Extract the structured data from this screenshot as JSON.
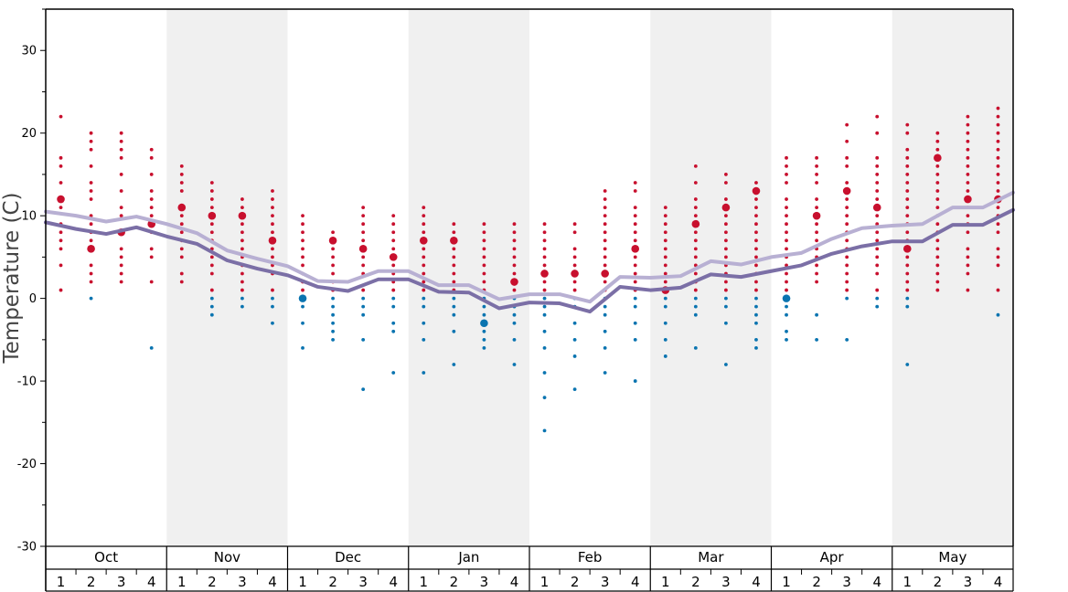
{
  "chart_data": {
    "type": "scatter",
    "ylabel": "Temperature (C)",
    "ylim": [
      -30,
      35
    ],
    "yticks": [
      -30,
      -20,
      -10,
      0,
      10,
      20,
      30
    ],
    "months": [
      "Oct",
      "Nov",
      "Dec",
      "Jan",
      "Feb",
      "Mar",
      "Apr",
      "May"
    ],
    "weeks": [
      "1",
      "2",
      "3",
      "4"
    ],
    "shaded_months": [
      "Nov",
      "Jan",
      "Mar",
      "May"
    ],
    "colors": {
      "warm_dots": "#c8102e",
      "cold_dots": "#0a74b0",
      "dark_line": "#7b6fa6",
      "light_line": "#b8b0d3",
      "shade": "#f0f0f0"
    },
    "series": [
      {
        "values": [
          9.2,
          8.4,
          7.8,
          8.6,
          7.5,
          6.6,
          4.6,
          3.6,
          2.8,
          1.4,
          0.9,
          2.3,
          2.3,
          0.8,
          0.7,
          -1.2,
          -0.5,
          -0.6,
          -1.6,
          1.4,
          1.0,
          1.3,
          2.9,
          2.6,
          3.3,
          4.0,
          5.4,
          6.3,
          6.9,
          6.9,
          8.9,
          8.9,
          10.7
        ]
      },
      {
        "values": [
          10.5,
          10.0,
          9.3,
          9.9,
          9.0,
          7.9,
          5.8,
          4.8,
          3.9,
          2.1,
          2.0,
          3.3,
          3.3,
          1.6,
          1.6,
          -0.1,
          0.5,
          0.5,
          -0.4,
          2.6,
          2.5,
          2.7,
          4.5,
          4.1,
          5.0,
          5.5,
          7.2,
          8.5,
          8.8,
          9.0,
          11.0,
          11.0,
          12.8
        ]
      }
    ],
    "dots": [
      [
        22,
        17,
        16,
        14,
        12,
        11,
        9,
        8,
        7,
        6,
        4,
        1
      ],
      [
        20,
        19,
        18,
        16,
        14,
        13,
        12,
        10,
        9,
        8,
        7,
        6,
        4,
        3,
        2,
        0
      ],
      [
        20,
        19,
        18,
        17,
        15,
        13,
        11,
        10,
        8,
        6,
        5,
        4,
        3,
        2
      ],
      [
        18,
        17,
        15,
        13,
        12,
        11,
        10,
        9,
        8,
        6,
        5,
        2,
        -6
      ],
      [
        16,
        15,
        14,
        13,
        11,
        10,
        9,
        8,
        7,
        6,
        5,
        3,
        2
      ],
      [
        14,
        13,
        12,
        11,
        10,
        9,
        8,
        7,
        6,
        5,
        4,
        3,
        1,
        0,
        -1,
        -2
      ],
      [
        12,
        11,
        10,
        9,
        8,
        7,
        6,
        5,
        4,
        3,
        2,
        1,
        0,
        -1
      ],
      [
        13,
        12,
        11,
        10,
        9,
        8,
        7,
        6,
        5,
        4,
        3,
        1,
        0,
        -1,
        -3
      ],
      [
        10,
        9,
        8,
        7,
        6,
        5,
        4,
        3,
        2,
        1,
        0,
        -1,
        -3,
        -6
      ],
      [
        8,
        7,
        6,
        5,
        4,
        3,
        2,
        1,
        0,
        -1,
        -2,
        -3,
        -4,
        -5
      ],
      [
        11,
        10,
        9,
        8,
        7,
        6,
        5,
        4,
        3,
        1,
        0,
        -1,
        -2,
        -5,
        -11
      ],
      [
        10,
        9,
        8,
        7,
        6,
        5,
        4,
        3,
        2,
        1,
        0,
        -1,
        -3,
        -4,
        -9
      ],
      [
        11,
        10,
        9,
        8,
        7,
        6,
        5,
        4,
        3,
        2,
        1,
        0,
        -1,
        -3,
        -5,
        -9
      ],
      [
        9,
        8,
        7,
        6,
        5,
        4,
        3,
        2,
        1,
        0,
        -1,
        -2,
        -4,
        -8
      ],
      [
        9,
        8,
        7,
        6,
        5,
        4,
        3,
        2,
        1,
        0,
        -1,
        -2,
        -3,
        -4,
        -5,
        -6
      ],
      [
        9,
        8,
        7,
        6,
        5,
        4,
        3,
        2,
        1,
        0,
        -1,
        -2,
        -3,
        -5,
        -8
      ],
      [
        9,
        8,
        7,
        6,
        5,
        4,
        3,
        2,
        1,
        0,
        -1,
        -2,
        -4,
        -6,
        -9,
        -12,
        -16
      ],
      [
        9,
        8,
        6,
        5,
        4,
        3,
        2,
        1,
        0,
        -1,
        -3,
        -5,
        -7,
        -11
      ],
      [
        13,
        12,
        11,
        10,
        9,
        8,
        7,
        6,
        5,
        4,
        3,
        2,
        1,
        0,
        -1,
        -2,
        -4,
        -6,
        -9
      ],
      [
        14,
        13,
        11,
        10,
        9,
        8,
        7,
        6,
        5,
        4,
        3,
        2,
        1,
        0,
        -1,
        -3,
        -5,
        -10
      ],
      [
        11,
        10,
        9,
        8,
        7,
        6,
        5,
        4,
        3,
        2,
        1,
        0,
        -1,
        -3,
        -5,
        -7
      ],
      [
        16,
        14,
        12,
        11,
        10,
        9,
        8,
        7,
        6,
        5,
        4,
        3,
        2,
        1,
        0,
        -1,
        -2,
        -6
      ],
      [
        15,
        14,
        12,
        11,
        10,
        9,
        8,
        7,
        6,
        5,
        4,
        3,
        2,
        1,
        0,
        -1,
        -3,
        -8
      ],
      [
        14,
        13,
        12,
        11,
        10,
        9,
        8,
        7,
        6,
        5,
        4,
        3,
        2,
        1,
        0,
        -1,
        -2,
        -3,
        -5,
        -6
      ],
      [
        17,
        16,
        15,
        14,
        12,
        11,
        10,
        9,
        8,
        7,
        6,
        5,
        4,
        3,
        2,
        1,
        0,
        -1,
        -2,
        -4,
        -5
      ],
      [
        17,
        16,
        15,
        14,
        12,
        11,
        10,
        9,
        8,
        7,
        6,
        5,
        4,
        3,
        2,
        -2,
        -5
      ],
      [
        21,
        19,
        17,
        16,
        14,
        13,
        12,
        11,
        10,
        9,
        8,
        7,
        6,
        5,
        4,
        3,
        2,
        1,
        0,
        -5
      ],
      [
        22,
        20,
        17,
        16,
        15,
        14,
        13,
        12,
        11,
        10,
        9,
        8,
        7,
        6,
        5,
        4,
        3,
        1,
        0,
        -1
      ],
      [
        21,
        20,
        18,
        17,
        16,
        15,
        14,
        13,
        12,
        11,
        10,
        9,
        8,
        7,
        6,
        5,
        4,
        3,
        2,
        1,
        0,
        -1,
        -8
      ],
      [
        20,
        19,
        18,
        17,
        16,
        15,
        14,
        13,
        12,
        11,
        10,
        9,
        8,
        7,
        6,
        5,
        4,
        3,
        2,
        1
      ],
      [
        22,
        21,
        20,
        19,
        18,
        17,
        16,
        15,
        14,
        13,
        12,
        11,
        10,
        9,
        8,
        6,
        5,
        4,
        3,
        1
      ],
      [
        23,
        22,
        21,
        20,
        19,
        18,
        17,
        16,
        15,
        14,
        13,
        12,
        11,
        10,
        9,
        8,
        6,
        5,
        4,
        1,
        -2
      ]
    ],
    "big_dots": [
      [
        12
      ],
      [
        6
      ],
      [
        8
      ],
      [
        9
      ],
      [
        11
      ],
      [
        10
      ],
      [
        10
      ],
      [
        7
      ],
      [
        0
      ],
      [
        7
      ],
      [
        6
      ],
      [
        5
      ],
      [
        7
      ],
      [
        7
      ],
      [
        -3
      ],
      [
        2
      ],
      [
        3
      ],
      [
        3
      ],
      [
        3
      ],
      [
        6
      ],
      [
        1
      ],
      [
        9
      ],
      [
        11
      ],
      [
        13
      ],
      [
        0
      ],
      [
        10
      ],
      [
        13
      ],
      [
        11
      ],
      [
        6
      ],
      [
        17
      ],
      [
        12
      ],
      [
        12
      ]
    ]
  }
}
